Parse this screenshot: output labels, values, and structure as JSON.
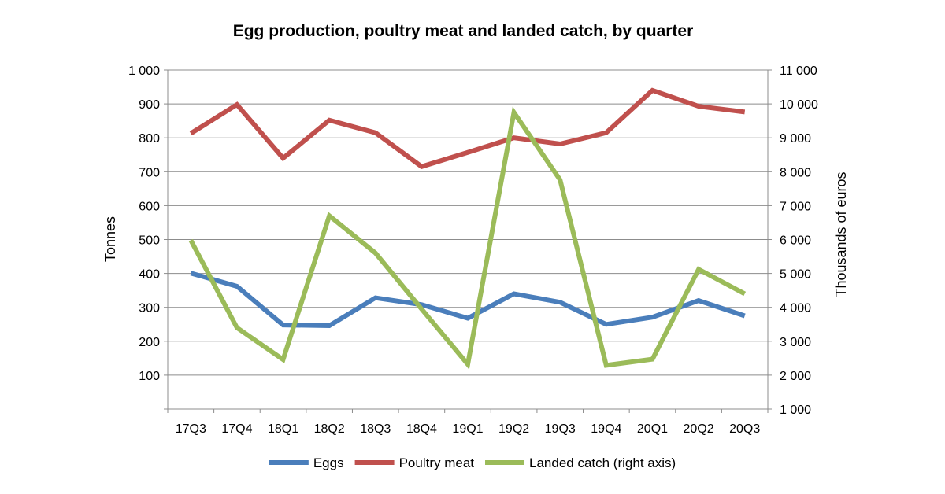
{
  "chart_data": {
    "type": "line",
    "title": "Egg production, poultry meat and landed catch, by quarter",
    "categories": [
      "17Q3",
      "17Q4",
      "18Q1",
      "18Q2",
      "18Q3",
      "18Q4",
      "19Q1",
      "19Q2",
      "19Q3",
      "19Q4",
      "20Q1",
      "20Q2",
      "20Q3"
    ],
    "ylabel_left": "Tonnes",
    "ylabel_right": "Thousands of euros",
    "ylim_left": [
      0,
      1000
    ],
    "ylim_right": [
      1000,
      11000
    ],
    "yticks_left": [
      "",
      "100",
      "200",
      "300",
      "400",
      "500",
      "600",
      "700",
      "800",
      "900",
      "1 000"
    ],
    "yticks_right": [
      "1 000",
      "2 000",
      "3 000",
      "4 000",
      "5 000",
      "6 000",
      "7 000",
      "8 000",
      "9 000",
      "10 000",
      "11 000"
    ],
    "grid": true,
    "legend_position": "bottom",
    "series": [
      {
        "name": "Eggs",
        "axis": "left",
        "color": "#4a7ebb",
        "values": [
          401,
          362,
          248,
          246,
          328,
          308,
          268,
          340,
          315,
          250,
          271,
          320,
          275
        ]
      },
      {
        "name": "Poultry meat",
        "axis": "left",
        "color": "#c0504d",
        "values": [
          813,
          898,
          740,
          852,
          815,
          715,
          757,
          800,
          782,
          815,
          940,
          893,
          876
        ]
      },
      {
        "name": "Landed catch (right axis)",
        "axis": "right",
        "color": "#9bbb59",
        "values": [
          5980,
          3400,
          2460,
          6700,
          5600,
          3950,
          2320,
          9750,
          7760,
          2290,
          2470,
          5120,
          4400
        ]
      }
    ]
  }
}
